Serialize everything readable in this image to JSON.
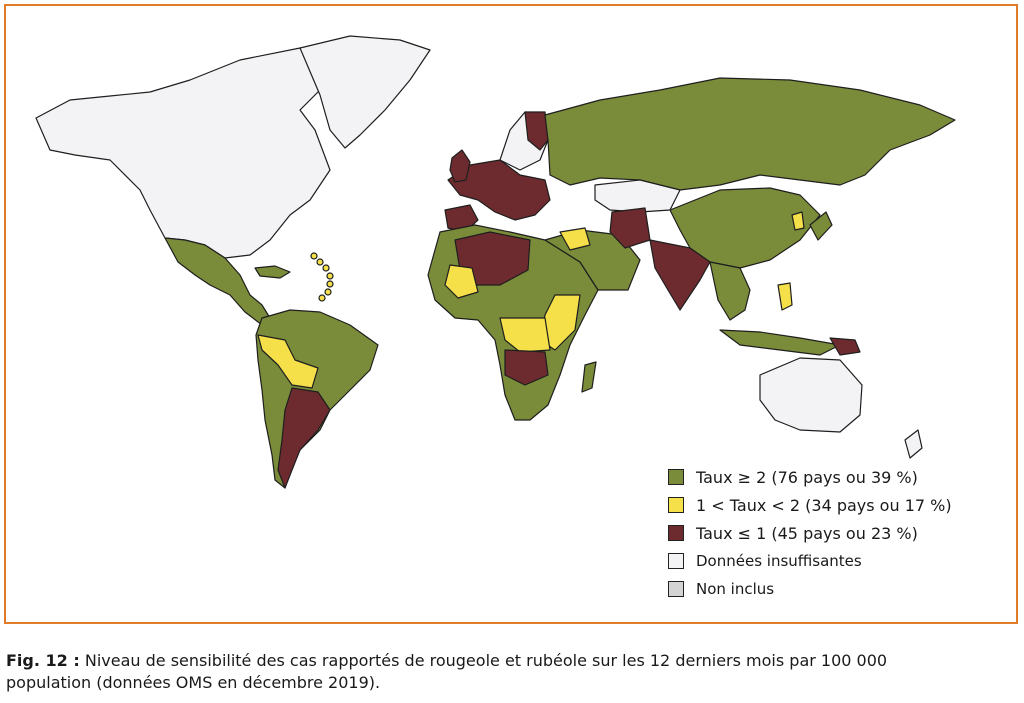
{
  "colors": {
    "frame": "#e07b2a",
    "high": "#7a8b3a",
    "mid": "#f5e04a",
    "low": "#6e2b2f",
    "insufficient": "#f3f3f6",
    "not_included": "#d4d4d4",
    "border": "#1e1e1e"
  },
  "legend": {
    "high_label": "Taux ≥ 2 (76 pays ou 39 %)",
    "mid_label": "1 < Taux < 2 (34 pays ou 17 %)",
    "low_label": "Taux ≤ 1 (45 pays ou 23 %)",
    "insufficient_label": "Données insuffisantes",
    "not_included_label": "Non inclus"
  },
  "caption": {
    "fig_label": "Fig. 12 :",
    "text_line1": "Niveau de sensibilité des cas rapportés de rougeole et rubéole sur les 12 derniers mois par 100 000",
    "text_line2": "population (données OMS en décembre 2019)."
  }
}
